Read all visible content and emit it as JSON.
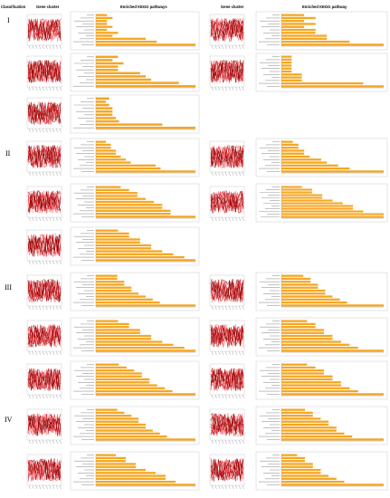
{
  "headers": {
    "classification": "Classification",
    "gene_cluster_left": "Gene cluster",
    "kegg_left": "Enriched KEGG pathways",
    "gene_cluster_right": "Gene cluster",
    "kegg_right": "Enriched KEGG pathway"
  },
  "classes": [
    "I",
    "II",
    "III",
    "IV"
  ],
  "colors": {
    "bar": "#f5a623",
    "cluster_dark": "#8b0000",
    "cluster_light": "#e8202a",
    "frame": "#999999"
  },
  "panels": [
    {
      "side": "left",
      "group": "I",
      "bars": [
        2,
        3,
        2,
        2,
        3,
        2,
        4,
        3,
        9,
        11,
        18
      ]
    },
    {
      "side": "right",
      "group": "I",
      "bars": [
        2,
        3,
        2,
        3,
        2,
        3,
        3,
        4,
        4,
        6,
        9
      ]
    },
    {
      "side": "left",
      "group": "I",
      "bars": [
        4,
        3,
        5,
        4,
        4,
        8,
        9,
        10,
        15,
        18
      ]
    },
    {
      "side": "right",
      "group": "I",
      "bars": [
        1,
        1,
        1,
        1,
        1,
        1,
        2,
        2,
        2,
        8,
        10
      ]
    },
    {
      "side": "left",
      "group": "I",
      "bars": [
        4,
        3,
        4,
        5,
        5,
        5,
        6,
        7,
        20,
        30
      ]
    },
    {
      "side": "left",
      "group": "II",
      "bars": [
        2,
        3,
        3,
        4,
        4,
        5,
        6,
        7,
        12,
        13,
        20
      ]
    },
    {
      "side": "right",
      "group": "II",
      "bars": [
        2,
        3,
        3,
        4,
        4,
        5,
        7,
        8,
        10,
        12,
        18
      ]
    },
    {
      "side": "left",
      "group": "II",
      "bars": [
        3,
        4,
        5,
        5,
        6,
        7,
        8,
        8,
        9,
        9,
        12
      ]
    },
    {
      "side": "right",
      "group": "II",
      "bars": [
        2,
        3,
        3,
        4,
        4,
        5,
        6,
        7,
        7,
        8,
        10,
        10
      ]
    },
    {
      "side": "left",
      "group": "II",
      "bars": [
        2,
        3,
        3,
        4,
        4,
        5,
        5,
        6,
        7,
        8,
        9
      ]
    },
    {
      "side": "left",
      "group": "III",
      "bars": [
        3,
        3,
        4,
        4,
        5,
        5,
        6,
        7,
        8,
        9,
        14
      ]
    },
    {
      "side": "right",
      "group": "III",
      "bars": [
        3,
        4,
        4,
        5,
        5,
        6,
        6,
        7,
        8,
        9,
        14
      ]
    },
    {
      "side": "left",
      "group": "III",
      "bars": [
        2,
        3,
        3,
        4,
        4,
        5,
        5,
        6,
        7,
        8,
        9
      ]
    },
    {
      "side": "right",
      "group": "III",
      "bars": [
        3,
        4,
        4,
        5,
        5,
        6,
        6,
        7,
        8,
        9,
        12
      ]
    },
    {
      "side": "left",
      "group": "III",
      "bars": [
        3,
        4,
        5,
        6,
        6,
        7,
        7,
        8,
        9,
        10,
        13
      ]
    },
    {
      "side": "right",
      "group": "III",
      "bars": [
        3,
        4,
        5,
        5,
        6,
        6,
        7,
        7,
        8,
        9,
        12
      ]
    },
    {
      "side": "left",
      "group": "IV",
      "bars": [
        3,
        4,
        5,
        6,
        6,
        7,
        7,
        8,
        9,
        10,
        14
      ]
    },
    {
      "side": "right",
      "group": "IV",
      "bars": [
        3,
        4,
        4,
        5,
        6,
        6,
        7,
        7,
        8,
        9,
        13
      ]
    },
    {
      "side": "left",
      "group": "IV",
      "bars": [
        2,
        3,
        3,
        4,
        4,
        5,
        6,
        7,
        7,
        8,
        10
      ]
    },
    {
      "side": "right",
      "group": "IV",
      "bars": [
        2,
        3,
        3,
        4,
        4,
        5,
        5,
        6,
        7,
        8,
        13
      ]
    }
  ]
}
